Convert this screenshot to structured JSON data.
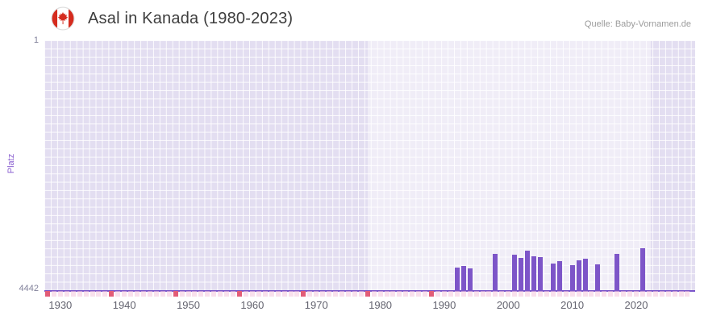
{
  "header": {
    "title": "Asal in Kanada (1980-2023)",
    "source": "Quelle: Baby-Vornamen.de",
    "flag_icon": "canada-flag-icon"
  },
  "chart_data": {
    "type": "bar",
    "title": "Asal in Kanada (1980-2023)",
    "xlabel": "",
    "ylabel": "Platz",
    "y_axis": {
      "top_tick": "1",
      "bottom_tick": "4442",
      "min": 1,
      "max": 4442,
      "inverted": true
    },
    "x_ticks": [
      "1930",
      "1940",
      "1950",
      "1960",
      "1970",
      "1980",
      "1990",
      "2000",
      "2010",
      "2020"
    ],
    "x_range": [
      1927.5,
      2029.2
    ],
    "highlight_band": {
      "from": 1978,
      "to": 2022.3
    },
    "bars": [
      {
        "year": 1992,
        "rank": 4041
      },
      {
        "year": 1993,
        "rank": 4012
      },
      {
        "year": 1994,
        "rank": 4055
      },
      {
        "year": 1998,
        "rank": 3797
      },
      {
        "year": 2001,
        "rank": 3812
      },
      {
        "year": 2002,
        "rank": 3869
      },
      {
        "year": 2003,
        "rank": 3740
      },
      {
        "year": 2004,
        "rank": 3840
      },
      {
        "year": 2005,
        "rank": 3855
      },
      {
        "year": 2007,
        "rank": 3970
      },
      {
        "year": 2008,
        "rank": 3926
      },
      {
        "year": 2010,
        "rank": 3998
      },
      {
        "year": 2011,
        "rank": 3912
      },
      {
        "year": 2012,
        "rank": 3883
      },
      {
        "year": 2014,
        "rank": 3984
      },
      {
        "year": 2017,
        "rank": 3797
      },
      {
        "year": 2021,
        "rank": 3697
      }
    ],
    "no_rank_markers": {
      "range": [
        1928,
        2028
      ],
      "strong_years": [
        1928,
        1938,
        1948,
        1958,
        1968,
        1978,
        1988
      ]
    },
    "legend": "none",
    "grid": true,
    "colors": {
      "bar": "#7d55c8",
      "axis_line": "#7a55c9",
      "plot_bg": "#e3def1",
      "band": "rgba(255,255,255,0.45)",
      "marker_light": "#f4c6dc",
      "marker_strong": "#e25c77",
      "ylabel_color": "#8a5fd0"
    }
  }
}
